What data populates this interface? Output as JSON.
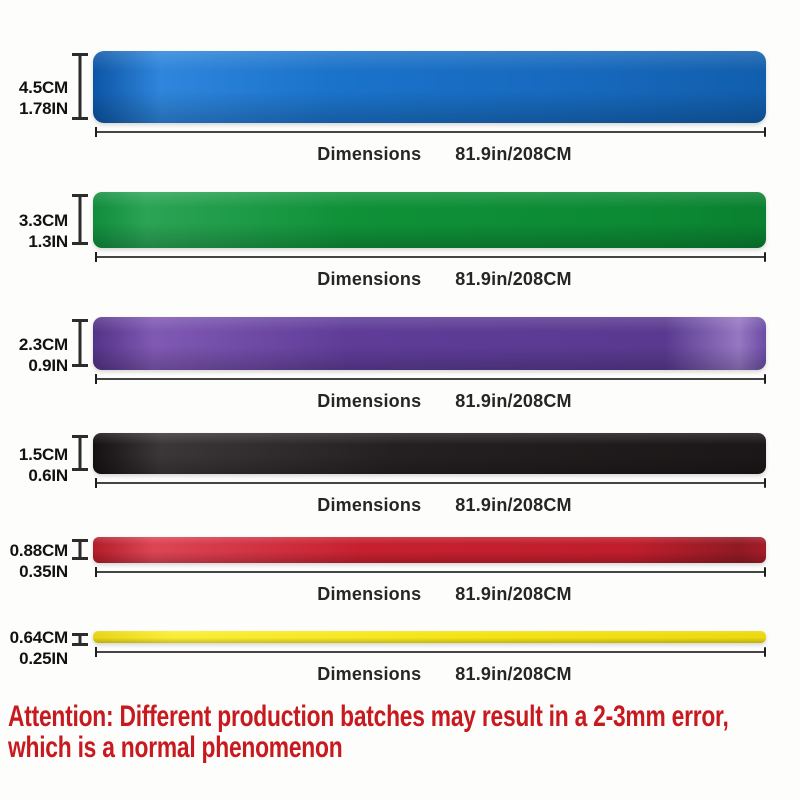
{
  "page": {
    "background": "#fdfdfc"
  },
  "bands": [
    {
      "name": "blue",
      "thickness_cm": "4.5CM",
      "thickness_in": "1.78IN",
      "color": "#1b73ca",
      "gradient_stops": [
        "#0c55a5 0%",
        "#2f86dc 10%",
        "#1b73ca 35%",
        "#1668bc 75%",
        "#115ead 100%"
      ]
    },
    {
      "name": "green",
      "thickness_cm": "3.3CM",
      "thickness_in": "1.3IN",
      "color": "#0f9138",
      "gradient_stops": [
        "#0f8c3c 0%",
        "#2ba455 8%",
        "#0f9138 38%",
        "#0c8a34 80%",
        "#0a8130 100%"
      ]
    },
    {
      "name": "purple",
      "thickness_cm": "2.3CM",
      "thickness_in": "0.9IN",
      "color": "#5e3c98",
      "gradient_stops": [
        "#533387 0%",
        "#8059b3 9%",
        "#5e3c98 38%",
        "#593a90 85%",
        "#9577c2 96%",
        "#6b4ba5 100%"
      ]
    },
    {
      "name": "black",
      "thickness_cm": "1.5CM",
      "thickness_in": "0.6IN",
      "color": "#242021",
      "gradient_stops": [
        "#151112 0%",
        "#3b3637 10%",
        "#242021 45%",
        "#1b1718 100%"
      ]
    },
    {
      "name": "red",
      "thickness_cm": "0.88CM",
      "thickness_in": "0.35IN",
      "color": "#c6202f",
      "gradient_stops": [
        "#b21d29 0%",
        "#dd4555 9%",
        "#c6202f 40%",
        "#c01e2c 80%",
        "#901a24 96%",
        "#a51c27 100%"
      ]
    },
    {
      "name": "yellow",
      "thickness_cm": "0.64CM",
      "thickness_in": "0.25IN",
      "color": "#f4e416",
      "gradient_stops": [
        "#e8d414 0%",
        "#faee35 12%",
        "#f4e416 55%",
        "#ecd90f 100%"
      ]
    }
  ],
  "dimension_row": {
    "label": "Dimensions",
    "value": "81.9in/208CM"
  },
  "attention": {
    "color": "#c8191f",
    "line1": "Attention: Different production batches may result in a 2-3mm error,",
    "line2": "which is a normal phenomenon"
  }
}
